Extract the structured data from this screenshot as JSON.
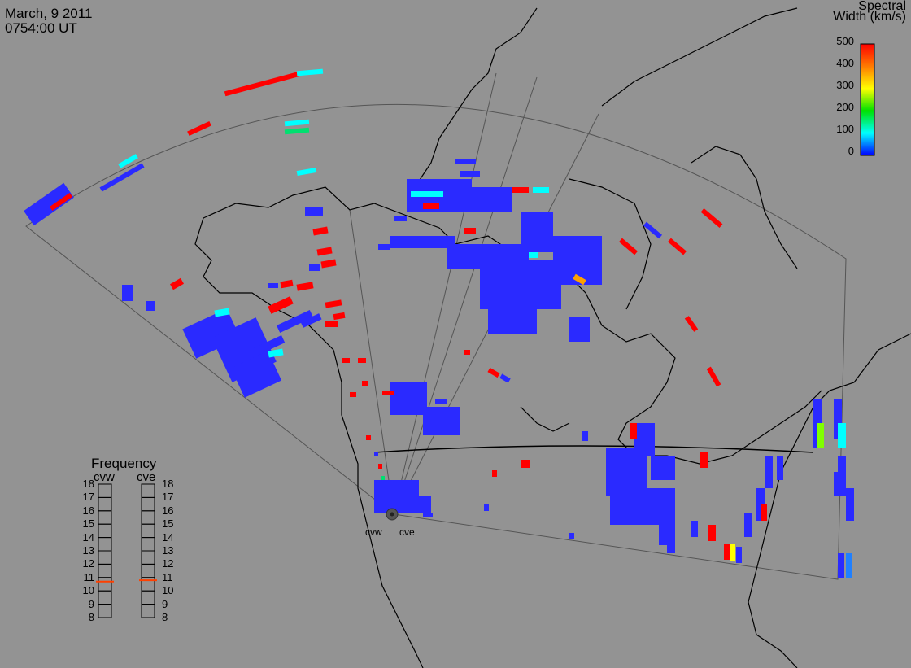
{
  "header": {
    "date": "March, 9 2011",
    "time": "0754:00 UT"
  },
  "colorbar": {
    "title_line1": "Spectral",
    "title_line2": "Width (km/s)",
    "ticks": [
      "500",
      "400",
      "300",
      "200",
      "100",
      "0"
    ],
    "colors": [
      "#ff0000",
      "#ff7a00",
      "#ffff00",
      "#00e000",
      "#00ffff",
      "#0000ff"
    ]
  },
  "frequency": {
    "title": "Frequency",
    "radars": [
      {
        "name": "cvw",
        "selected_mhz": 10.7
      },
      {
        "name": "cve",
        "selected_mhz": 10.8
      }
    ],
    "levels": [
      "18",
      "17",
      "16",
      "15",
      "14",
      "13",
      "12",
      "11",
      "10",
      "9",
      "8"
    ],
    "indicator_color": "#ff4000"
  },
  "radar_sites": {
    "left": "cvw",
    "right": "cve"
  },
  "palette": {
    "background": "#939393",
    "scatter_low": "#2a2aff",
    "scatter_mid": "#00ffff",
    "scatter_high": "#ff0000"
  }
}
